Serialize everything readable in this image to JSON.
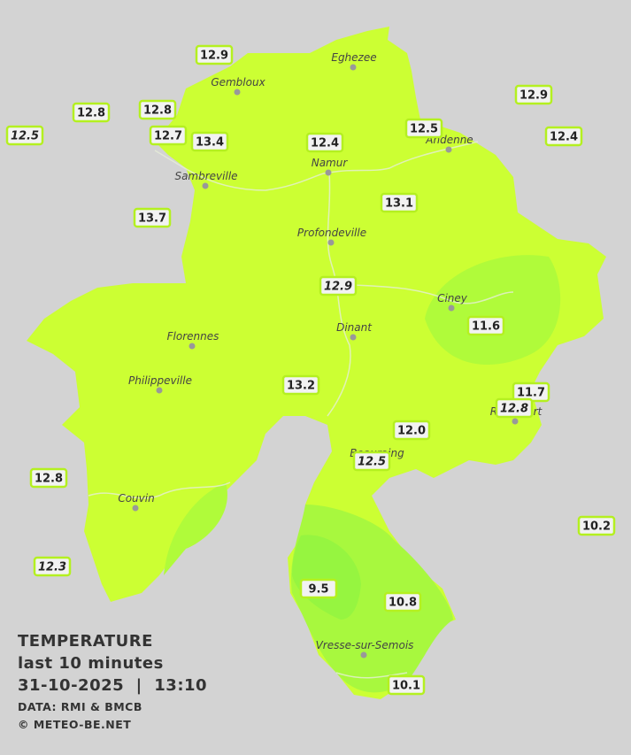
{
  "legend": {
    "title": "TEMPERATURE",
    "subtitle": "last 10 minutes",
    "datetime": "31-10-2025  |  13:10",
    "source": "DATA: RMI & BMCB",
    "credit": "© METEO-BE.NET"
  },
  "cities": [
    "Eghezee",
    "Gembloux",
    "Andenne",
    "Namur",
    "Sambreville",
    "Profondeville",
    "Ciney",
    "Dinant",
    "Florennes",
    "Philippeville",
    "Rochefort",
    "Beauraing",
    "Couvin",
    "Vresse-sur-Semois"
  ],
  "stations": [
    {
      "label": "12.9",
      "italic": false
    },
    {
      "label": "12.8",
      "italic": false
    },
    {
      "label": "12.8",
      "italic": false
    },
    {
      "label": "12.5",
      "italic": true
    },
    {
      "label": "12.7",
      "italic": false
    },
    {
      "label": "13.4",
      "italic": false
    },
    {
      "label": "12.4",
      "italic": false
    },
    {
      "label": "12.5",
      "italic": false
    },
    {
      "label": "12.9",
      "italic": false
    },
    {
      "label": "12.4",
      "italic": false
    },
    {
      "label": "13.7",
      "italic": false
    },
    {
      "label": "13.1",
      "italic": false
    },
    {
      "label": "12.9",
      "italic": true
    },
    {
      "label": "11.6",
      "italic": false
    },
    {
      "label": "13.2",
      "italic": false
    },
    {
      "label": "11.7",
      "italic": false
    },
    {
      "label": "12.8",
      "italic": true
    },
    {
      "label": "12.0",
      "italic": false
    },
    {
      "label": "12.5",
      "italic": true
    },
    {
      "label": "12.8",
      "italic": false
    },
    {
      "label": "10.2",
      "italic": false
    },
    {
      "label": "12.3",
      "italic": true
    },
    {
      "label": "9.5",
      "italic": false
    },
    {
      "label": "10.8",
      "italic": false
    },
    {
      "label": "10.1",
      "italic": false
    }
  ]
}
